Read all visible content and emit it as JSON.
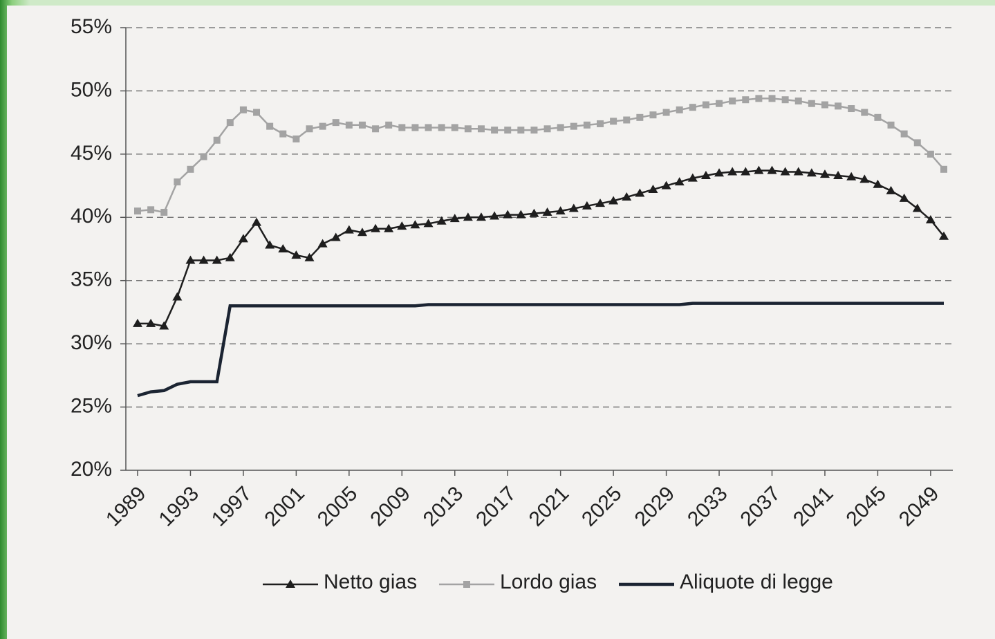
{
  "chart_data": {
    "type": "line",
    "x": [
      1989,
      1990,
      1991,
      1992,
      1993,
      1994,
      1995,
      1996,
      1997,
      1998,
      1999,
      2000,
      2001,
      2002,
      2003,
      2004,
      2005,
      2006,
      2007,
      2008,
      2009,
      2010,
      2011,
      2012,
      2013,
      2014,
      2015,
      2016,
      2017,
      2018,
      2019,
      2020,
      2021,
      2022,
      2023,
      2024,
      2025,
      2026,
      2027,
      2028,
      2029,
      2030,
      2031,
      2032,
      2033,
      2034,
      2035,
      2036,
      2037,
      2038,
      2039,
      2040,
      2041,
      2042,
      2043,
      2044,
      2045,
      2046,
      2047,
      2048,
      2049,
      2050
    ],
    "xlim": [
      1989,
      2050
    ],
    "xticks": [
      1989,
      1993,
      1997,
      2001,
      2005,
      2009,
      2013,
      2017,
      2021,
      2025,
      2029,
      2033,
      2037,
      2041,
      2045,
      2049
    ],
    "ylim": [
      20,
      55
    ],
    "yticks": [
      {
        "value": 20,
        "label": "20%"
      },
      {
        "value": 25,
        "label": "25%"
      },
      {
        "value": 30,
        "label": "30%"
      },
      {
        "value": 35,
        "label": "35%"
      },
      {
        "value": 40,
        "label": "40%"
      },
      {
        "value": 45,
        "label": "45%"
      },
      {
        "value": 50,
        "label": "50%"
      },
      {
        "value": 55,
        "label": "55%"
      }
    ],
    "grid": true,
    "legend": "bottom",
    "series": [
      {
        "name": "Netto gias",
        "color": "#1e1e1e",
        "marker": "triangle",
        "values": [
          31.6,
          31.6,
          31.4,
          33.7,
          36.6,
          36.6,
          36.6,
          36.8,
          38.3,
          39.6,
          37.8,
          37.5,
          37.0,
          36.8,
          37.9,
          38.4,
          39.0,
          38.8,
          39.1,
          39.1,
          39.3,
          39.4,
          39.5,
          39.7,
          39.9,
          40.0,
          40.0,
          40.1,
          40.2,
          40.2,
          40.3,
          40.4,
          40.5,
          40.7,
          40.9,
          41.1,
          41.3,
          41.6,
          41.9,
          42.2,
          42.5,
          42.8,
          43.1,
          43.3,
          43.5,
          43.6,
          43.6,
          43.7,
          43.7,
          43.6,
          43.6,
          43.5,
          43.4,
          43.3,
          43.2,
          43.0,
          42.6,
          42.1,
          41.5,
          40.7,
          39.8,
          38.5
        ]
      },
      {
        "name": "Lordo gias",
        "color": "#a3a3a3",
        "marker": "square",
        "values": [
          40.5,
          40.6,
          40.4,
          42.8,
          43.8,
          44.8,
          46.1,
          47.5,
          48.5,
          48.3,
          47.2,
          46.6,
          46.2,
          47.0,
          47.2,
          47.5,
          47.3,
          47.3,
          47.0,
          47.3,
          47.1,
          47.1,
          47.1,
          47.1,
          47.1,
          47.0,
          47.0,
          46.9,
          46.9,
          46.9,
          46.9,
          47.0,
          47.1,
          47.2,
          47.3,
          47.4,
          47.6,
          47.7,
          47.9,
          48.1,
          48.3,
          48.5,
          48.7,
          48.9,
          49.0,
          49.2,
          49.3,
          49.4,
          49.4,
          49.3,
          49.2,
          49.0,
          48.9,
          48.8,
          48.6,
          48.3,
          47.9,
          47.3,
          46.6,
          45.9,
          45.0,
          43.8
        ]
      },
      {
        "name": "Aliquote di legge",
        "color": "#1b2432",
        "values": [
          25.9,
          26.2,
          26.3,
          26.8,
          27.0,
          27.0,
          27.0,
          33.0,
          33.0,
          33.0,
          33.0,
          33.0,
          33.0,
          33.0,
          33.0,
          33.0,
          33.0,
          33.0,
          33.0,
          33.0,
          33.0,
          33.0,
          33.1,
          33.1,
          33.1,
          33.1,
          33.1,
          33.1,
          33.1,
          33.1,
          33.1,
          33.1,
          33.1,
          33.1,
          33.1,
          33.1,
          33.1,
          33.1,
          33.1,
          33.1,
          33.1,
          33.1,
          33.2,
          33.2,
          33.2,
          33.2,
          33.2,
          33.2,
          33.2,
          33.2,
          33.2,
          33.2,
          33.2,
          33.2,
          33.2,
          33.2,
          33.2,
          33.2,
          33.2,
          33.2,
          33.2,
          33.2
        ]
      }
    ]
  }
}
